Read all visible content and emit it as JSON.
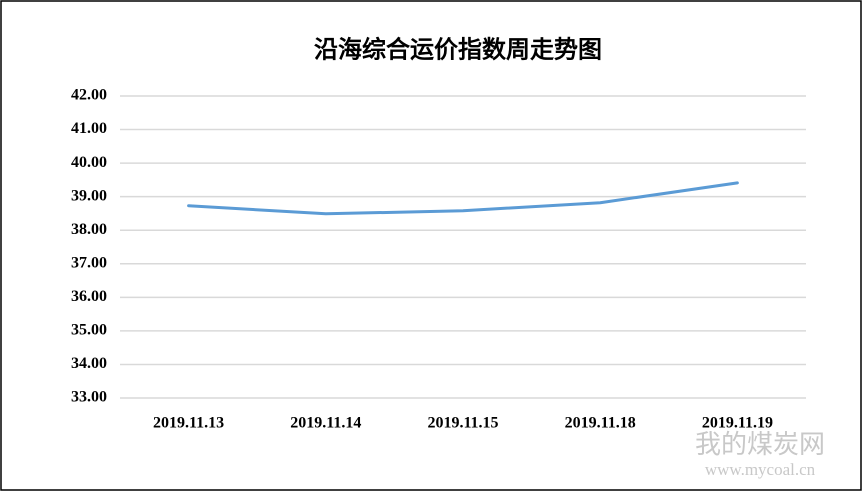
{
  "chart_data": {
    "type": "line",
    "title": "沿海综合运价指数周走势图",
    "categories": [
      "2019.11.13",
      "2019.11.14",
      "2019.11.15",
      "2019.11.18",
      "2019.11.19"
    ],
    "series": [
      {
        "name": "沿海综合运价指数",
        "color": "#5b9bd5",
        "values": [
          38.73,
          38.49,
          38.58,
          38.82,
          39.41
        ]
      }
    ],
    "ylim": [
      33,
      42
    ],
    "yticks": [
      {
        "value": 33,
        "label": "33.00"
      },
      {
        "value": 34,
        "label": "34.00"
      },
      {
        "value": 35,
        "label": "35.00"
      },
      {
        "value": 36,
        "label": "36.00"
      },
      {
        "value": 37,
        "label": "37.00"
      },
      {
        "value": 38,
        "label": "38.00"
      },
      {
        "value": 39,
        "label": "39.00"
      },
      {
        "value": 40,
        "label": "40.00"
      },
      {
        "value": 41,
        "label": "41.00"
      },
      {
        "value": 42,
        "label": "42.00"
      }
    ],
    "grid": true,
    "watermark": [
      "我的煤炭网",
      "www.mycoal.cn"
    ]
  }
}
